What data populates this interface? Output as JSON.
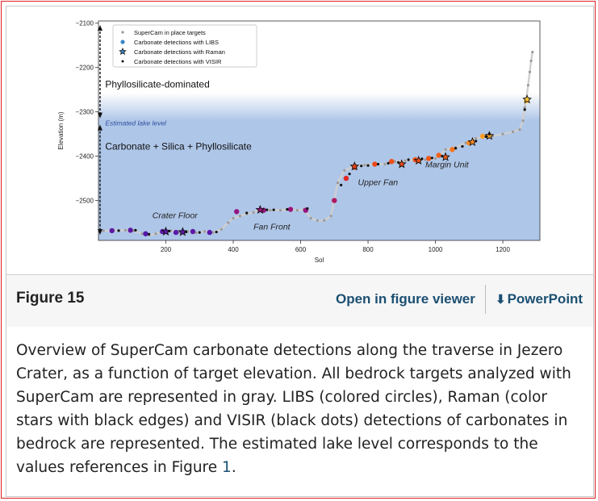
{
  "figure": {
    "label": "Figure 15",
    "viewer_link": "Open in figure viewer",
    "ppt_link": "PowerPoint",
    "caption_before": "Overview of SuperCam carbonate detections along the traverse in Jezero Crater, as a function of target elevation. All bedrock targets analyzed with SuperCam are represented in gray. LIBS (colored circles), Raman (color stars with black edges) and VISIR (black dots) detections of carbonates in bedrock are represented. The estimated lake level corresponds to the values references in Figure ",
    "caption_link": "1",
    "caption_after": "."
  },
  "colors": {
    "plot_bg": "#aec6e8",
    "gray_points": "#9a9a9a",
    "libs_low": "#5b1fa8",
    "libs_high": "#ff9a1f",
    "lake_text": "#2f4f9f"
  },
  "chart_data": {
    "type": "scatter",
    "xlabel": "Sol",
    "ylabel": "Elevation (m)",
    "xlim": [
      0,
      1310
    ],
    "ylim": [
      -2590,
      -2095
    ],
    "xticks": [
      200,
      400,
      600,
      800,
      1000,
      1200
    ],
    "yticks": [
      -2100,
      -2200,
      -2300,
      -2400,
      -2500
    ],
    "grid": false,
    "legend_position": "top-left",
    "legend": [
      "SuperCam in place targets",
      "Carbonate detections with LIBS",
      "Carbonate detections with Raman",
      "Carbonate detections with VISIR"
    ],
    "lake_level_label": "Estimated lake level",
    "lake_level_elevation": -2320,
    "annotations": [
      {
        "text": "Phyllosilicate-dominated",
        "x": 20,
        "y": -2245
      },
      {
        "text": "Carbonate + Silica + Phyllosilicate",
        "x": 20,
        "y": -2385
      },
      {
        "text": "Crater Floor",
        "x": 160,
        "y": -2540
      },
      {
        "text": "Fan Front",
        "x": 460,
        "y": -2565
      },
      {
        "text": "Upper Fan",
        "x": 770,
        "y": -2465
      },
      {
        "text": "Margin Unit",
        "x": 970,
        "y": -2425
      }
    ],
    "series": [
      {
        "name": "SuperCam in place targets",
        "x": [
          15,
          45,
          80,
          105,
          130,
          150,
          170,
          185,
          200,
          215,
          240,
          265,
          290,
          315,
          340,
          365,
          385,
          400,
          420,
          440,
          460,
          480,
          510,
          540,
          570,
          590,
          610,
          630,
          650,
          670,
          690,
          710,
          730,
          760,
          790,
          820,
          850,
          880,
          910,
          940,
          970,
          1000,
          1030,
          1060,
          1090,
          1120,
          1150,
          1170,
          1200,
          1230,
          1250,
          1260,
          1265,
          1270,
          1275,
          1280,
          1284,
          1288
        ],
        "y": [
          -2568,
          -2568,
          -2567,
          -2568,
          -2575,
          -2578,
          -2575,
          -2572,
          -2570,
          -2568,
          -2572,
          -2570,
          -2573,
          -2570,
          -2572,
          -2565,
          -2550,
          -2540,
          -2535,
          -2530,
          -2527,
          -2520,
          -2522,
          -2522,
          -2520,
          -2522,
          -2520,
          -2540,
          -2545,
          -2545,
          -2535,
          -2460,
          -2432,
          -2422,
          -2420,
          -2418,
          -2418,
          -2412,
          -2410,
          -2408,
          -2408,
          -2405,
          -2385,
          -2380,
          -2370,
          -2360,
          -2355,
          -2355,
          -2350,
          -2345,
          -2340,
          -2320,
          -2290,
          -2270,
          -2240,
          -2210,
          -2185,
          -2165
        ]
      },
      {
        "name": "Carbonate detections with LIBS",
        "x": [
          40,
          95,
          140,
          190,
          230,
          280,
          330,
          410,
          490,
          570,
          615,
          700,
          735,
          760,
          820,
          870,
          940,
          980,
          1010,
          1050,
          1100,
          1140,
          1270
        ],
        "y": [
          -2568,
          -2567,
          -2575,
          -2570,
          -2572,
          -2570,
          -2572,
          -2525,
          -2522,
          -2520,
          -2522,
          -2500,
          -2450,
          -2425,
          -2418,
          -2412,
          -2408,
          -2405,
          -2398,
          -2385,
          -2370,
          -2355,
          -2275
        ]
      },
      {
        "name": "Carbonate detections with Raman",
        "x": [
          200,
          250,
          480,
          760,
          900,
          950,
          1030,
          1110,
          1160,
          1272
        ],
        "y": [
          -2570,
          -2571,
          -2521,
          -2423,
          -2418,
          -2410,
          -2402,
          -2368,
          -2354,
          -2272
        ]
      },
      {
        "name": "Carbonate detections with VISIR",
        "x": [
          60,
          110,
          150,
          210,
          260,
          300,
          350,
          440,
          500,
          520,
          560,
          620,
          720,
          745,
          780,
          800,
          830,
          860,
          890,
          920,
          960,
          990,
          1020,
          1060,
          1080,
          1120,
          1150,
          1160,
          1265
        ],
        "y": [
          -2568,
          -2567,
          -2576,
          -2569,
          -2571,
          -2572,
          -2571,
          -2528,
          -2521,
          -2521,
          -2520,
          -2518,
          -2465,
          -2440,
          -2422,
          -2421,
          -2418,
          -2416,
          -2414,
          -2408,
          -2406,
          -2404,
          -2400,
          -2382,
          -2378,
          -2366,
          -2356,
          -2350,
          -2295
        ]
      }
    ]
  }
}
